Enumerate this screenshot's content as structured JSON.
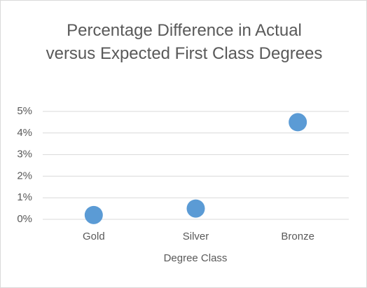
{
  "chart_data": {
    "type": "scatter",
    "title": "Percentage Difference in Actual versus Expected First Class Degrees",
    "x_label": "Degree Class",
    "categories": [
      "Gold",
      "Silver",
      "Bronze"
    ],
    "values": [
      0.2,
      0.5,
      4.5
    ],
    "color": "#5b9bd5",
    "ylim": [
      0,
      5
    ],
    "yticks": [
      {
        "value": 0,
        "label": "0%"
      },
      {
        "value": 1,
        "label": "1%"
      },
      {
        "value": 2,
        "label": "2%"
      },
      {
        "value": 3,
        "label": "3%"
      },
      {
        "value": 4,
        "label": "4%"
      },
      {
        "value": 5,
        "label": "5%"
      }
    ],
    "grid": true
  }
}
